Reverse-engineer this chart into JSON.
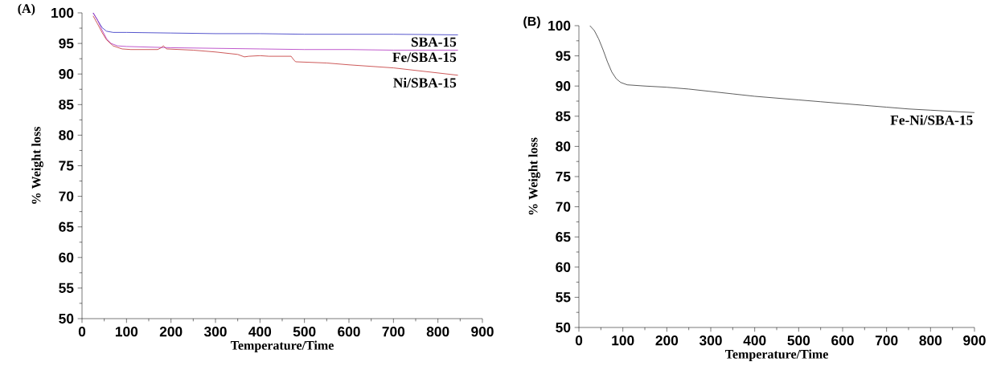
{
  "chart_data": [
    {
      "type": "line",
      "title": "(A)",
      "xlabel": "Temperature/Time",
      "ylabel": "% Weight loss",
      "xlim": [
        0,
        900
      ],
      "ylim": [
        50,
        100
      ],
      "xticks": [
        0,
        100,
        200,
        300,
        400,
        500,
        600,
        700,
        800,
        900
      ],
      "yticks": [
        50,
        55,
        60,
        65,
        70,
        75,
        80,
        85,
        90,
        95,
        100
      ],
      "legend": false,
      "series": [
        {
          "name": "SBA-15",
          "color": "#2b2bc0",
          "x": [
            25,
            35,
            45,
            55,
            70,
            100,
            200,
            300,
            400,
            500,
            600,
            700,
            845
          ],
          "values": [
            100,
            98.8,
            97.6,
            97.0,
            96.8,
            96.8,
            96.7,
            96.6,
            96.6,
            96.5,
            96.5,
            96.5,
            96.4
          ]
        },
        {
          "name": "Fe/SBA-15",
          "color": "#b030c0",
          "x": [
            25,
            35,
            45,
            55,
            65,
            80,
            100,
            200,
            300,
            400,
            500,
            600,
            700,
            845
          ],
          "values": [
            100,
            98.8,
            97.2,
            95.8,
            95.0,
            94.6,
            94.5,
            94.3,
            94.2,
            94.1,
            94.0,
            94.0,
            93.9,
            93.9
          ]
        },
        {
          "name": "Ni/SBA-15",
          "color": "#c03030",
          "x": [
            25,
            35,
            45,
            55,
            70,
            90,
            110,
            170,
            178,
            183,
            190,
            250,
            300,
            350,
            365,
            375,
            400,
            420,
            470,
            475,
            480,
            550,
            600,
            700,
            845
          ],
          "values": [
            99.5,
            98.2,
            96.8,
            95.6,
            94.6,
            94.1,
            94.0,
            94.0,
            94.3,
            94.6,
            94.1,
            93.9,
            93.6,
            93.2,
            92.8,
            92.9,
            93.0,
            92.9,
            92.9,
            92.4,
            92.0,
            91.8,
            91.5,
            91.0,
            89.8
          ]
        }
      ]
    },
    {
      "type": "line",
      "title": "(B)",
      "xlabel": "Temperature/Time",
      "ylabel": "% Weight loss",
      "xlim": [
        0,
        900
      ],
      "ylim": [
        50,
        100
      ],
      "xticks": [
        0,
        100,
        200,
        300,
        400,
        500,
        600,
        700,
        800,
        900
      ],
      "yticks": [
        50,
        55,
        60,
        65,
        70,
        75,
        80,
        85,
        90,
        95,
        100
      ],
      "legend": false,
      "series": [
        {
          "name": "Fe-Ni/SBA-15",
          "color": "#333333",
          "x": [
            25,
            35,
            45,
            55,
            65,
            75,
            85,
            95,
            110,
            150,
            200,
            250,
            300,
            350,
            400,
            450,
            500,
            550,
            600,
            650,
            700,
            750,
            800,
            850,
            900
          ],
          "values": [
            100,
            99.2,
            97.8,
            96.0,
            94.0,
            92.3,
            91.2,
            90.6,
            90.2,
            90.0,
            89.8,
            89.5,
            89.1,
            88.7,
            88.3,
            88.0,
            87.7,
            87.4,
            87.1,
            86.8,
            86.5,
            86.2,
            86.0,
            85.8,
            85.6
          ]
        }
      ]
    }
  ]
}
